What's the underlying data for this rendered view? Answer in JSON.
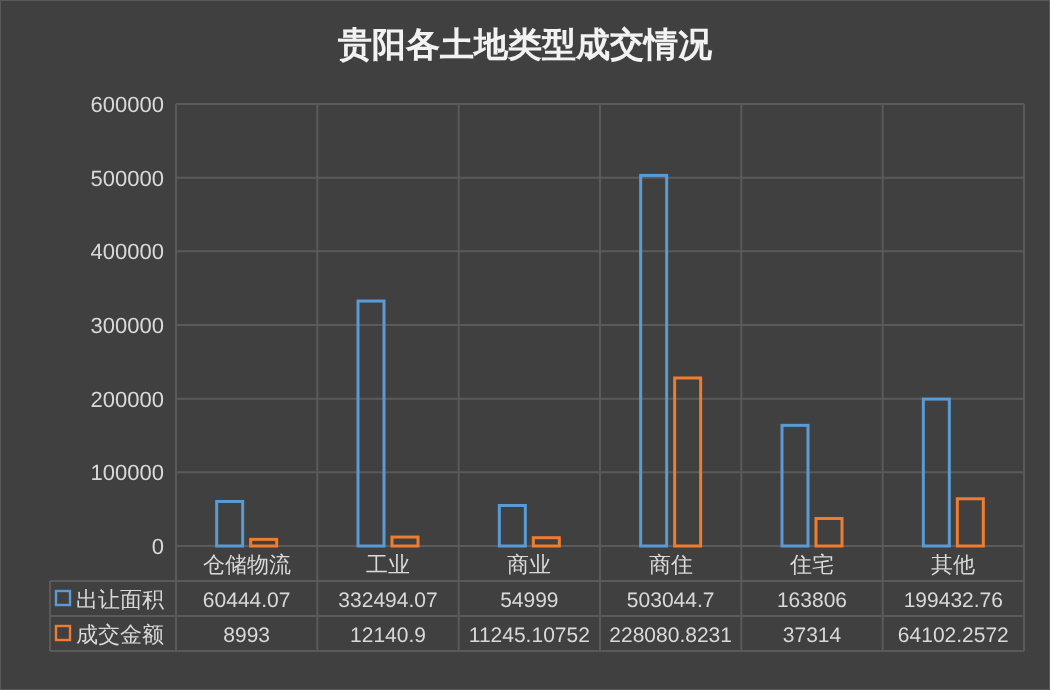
{
  "chart_data": {
    "type": "bar",
    "title": "贵阳各土地类型成交情况",
    "categories": [
      "仓储物流",
      "工业",
      "商业",
      "商住",
      "住宅",
      "其他"
    ],
    "series": [
      {
        "name": "出让面积",
        "color": "#5b9bd5",
        "values": [
          60444.07,
          332494.07,
          54999,
          503044.7,
          163806,
          199432.76
        ]
      },
      {
        "name": "成交金额",
        "color": "#ed7d31",
        "values": [
          8993,
          12140.9,
          11245.10752,
          228080.8231,
          37314,
          64102.2572
        ]
      }
    ],
    "ylim": [
      0,
      600000
    ],
    "yticks": [
      0,
      100000,
      200000,
      300000,
      400000,
      500000,
      600000
    ],
    "grid": "y",
    "legend": "bottom",
    "data_labels": true
  }
}
